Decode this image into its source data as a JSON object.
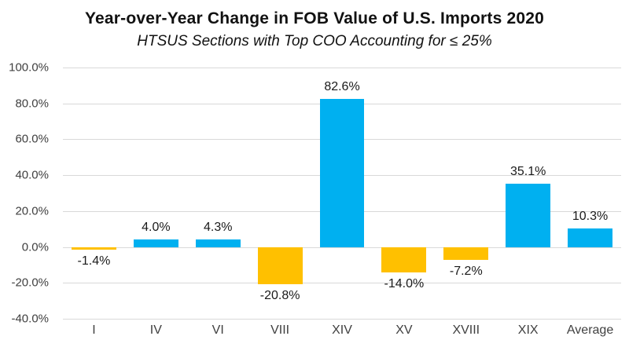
{
  "chart_data": {
    "type": "bar",
    "title": "Year-over-Year Change in FOB Value of U.S. Imports 2020",
    "subtitle": "HTSUS Sections with Top COO Accounting for ≤ 25%",
    "categories": [
      "I",
      "IV",
      "VI",
      "VIII",
      "XIV",
      "XV",
      "XVIII",
      "XIX",
      "Average"
    ],
    "values": [
      -1.4,
      4.0,
      4.3,
      -20.8,
      82.6,
      -14.0,
      -7.2,
      35.1,
      10.3
    ],
    "value_labels": [
      "-1.4%",
      "4.0%",
      "4.3%",
      "-20.8%",
      "82.6%",
      "-14.0%",
      "-7.2%",
      "35.1%",
      "10.3%"
    ],
    "ylim": [
      -40,
      100
    ],
    "ytick_step": 20,
    "ytick_labels": [
      "100.0%",
      "80.0%",
      "60.0%",
      "40.0%",
      "20.0%",
      "0.0%",
      "-20.0%",
      "-40.0%"
    ],
    "grid": true,
    "legend": "none",
    "colors": {
      "positive_bar": "#00b0f0",
      "negative_bar": "#ffc000",
      "gridline": "#d9d9d9",
      "axis_text": "#404040",
      "label_text": "#1a1a1a"
    }
  }
}
